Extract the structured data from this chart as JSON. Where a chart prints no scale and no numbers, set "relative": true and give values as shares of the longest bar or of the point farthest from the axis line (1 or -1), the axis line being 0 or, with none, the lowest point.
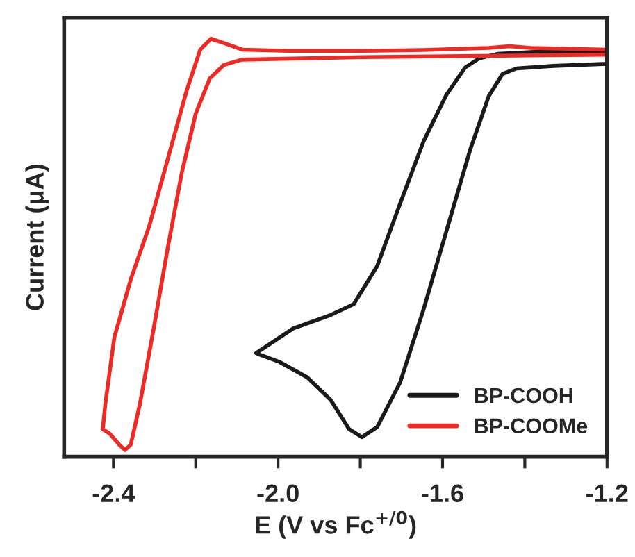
{
  "chart_data": {
    "type": "line",
    "relative": true,
    "xlabel": "E (V vs Fc$^{+/0}$)",
    "ylabel": "Current (μA)",
    "xlim": [
      -2.52,
      -1.2
    ],
    "xticks": [
      -2.4,
      {
        "value": -2.2,
        "label": null
      },
      {
        "value": -2.0,
        "label": "-2.0"
      },
      {
        "value": -1.8,
        "label": null
      },
      -1.6,
      {
        "value": -1.4,
        "label": null
      },
      -1.2
    ],
    "tick_labels": "x",
    "grid": false,
    "legend": "bottom right",
    "marker": "none",
    "line_style": "solid",
    "series": [
      {
        "name": "BP-COOH",
        "color": "#1a1a1a",
        "x": [
          -2.053,
          -1.963,
          -1.872,
          -1.816,
          -1.759,
          -1.703,
          -1.646,
          -1.59,
          -1.545,
          -1.511,
          -1.465,
          -1.364,
          -1.2,
          -1.2,
          -1.33,
          -1.42,
          -1.454,
          -1.488,
          -1.533,
          -1.59,
          -1.646,
          -1.703,
          -1.759,
          -1.796,
          -1.827,
          -1.872,
          -1.929,
          -1.997,
          -2.049
        ],
        "values": [
          0.248,
          0.307,
          0.339,
          0.365,
          0.456,
          0.606,
          0.755,
          0.867,
          0.931,
          0.953,
          0.964,
          0.969,
          0.969,
          0.94,
          0.935,
          0.929,
          0.916,
          0.862,
          0.734,
          0.542,
          0.353,
          0.178,
          0.071,
          0.047,
          0.066,
          0.136,
          0.19,
          0.227,
          0.246
        ]
      },
      {
        "name": "BP-COOMe",
        "color": "#ee2a24",
        "x": [
          -1.2,
          -1.793,
          -2.088,
          -2.132,
          -2.166,
          -2.2,
          -2.234,
          -2.268,
          -2.302,
          -2.336,
          -2.358,
          -2.372,
          -2.386,
          -2.409,
          -2.426,
          -2.42,
          -2.398,
          -2.358,
          -2.313,
          -2.268,
          -2.223,
          -2.189,
          -2.163,
          -2.132,
          -2.087,
          -1.974,
          -1.793,
          -1.647,
          -1.488,
          -1.437,
          -1.386,
          -1.2
        ],
        "values": [
          0.962,
          0.956,
          0.95,
          0.937,
          0.905,
          0.821,
          0.679,
          0.5,
          0.308,
          0.125,
          0.029,
          0.016,
          0.029,
          0.055,
          0.066,
          0.125,
          0.285,
          0.424,
          0.552,
          0.712,
          0.873,
          0.974,
          1.0,
          0.99,
          0.974,
          0.971,
          0.971,
          0.973,
          0.978,
          0.982,
          0.978,
          0.974
        ]
      }
    ]
  }
}
